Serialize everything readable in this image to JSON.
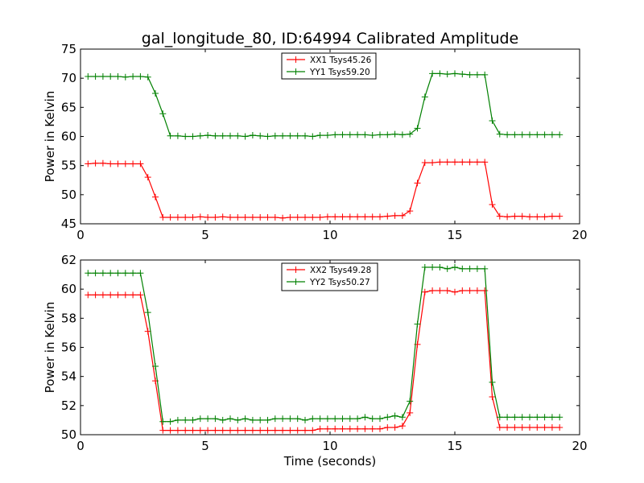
{
  "figure": {
    "title": "gal_longitude_80, ID:64994 Calibrated Amplitude"
  },
  "chart_data": [
    {
      "type": "line",
      "title": "gal_longitude_80, ID:64994 Calibrated Amplitude",
      "xlabel": "",
      "ylabel": "Power in Kelvin",
      "xlim": [
        0,
        20
      ],
      "ylim": [
        45,
        75
      ],
      "xticks": [
        0,
        5,
        10,
        15,
        20
      ],
      "yticks": [
        45,
        50,
        55,
        60,
        65,
        70,
        75
      ],
      "grid": false,
      "legend_position": "top-center",
      "x": [
        0.3,
        0.6,
        0.9,
        1.2,
        1.5,
        1.8,
        2.1,
        2.4,
        2.7,
        3.0,
        3.3,
        3.6,
        3.9,
        4.2,
        4.5,
        4.8,
        5.1,
        5.4,
        5.7,
        6.0,
        6.3,
        6.6,
        6.9,
        7.2,
        7.5,
        7.8,
        8.1,
        8.4,
        8.7,
        9.0,
        9.3,
        9.6,
        9.9,
        10.2,
        10.5,
        10.8,
        11.1,
        11.4,
        11.7,
        12.0,
        12.3,
        12.6,
        12.9,
        13.2,
        13.5,
        13.8,
        14.1,
        14.4,
        14.7,
        15.0,
        15.3,
        15.6,
        15.9,
        16.2,
        16.5,
        16.8,
        17.1,
        17.4,
        17.7,
        18.0,
        18.3,
        18.6,
        18.9,
        19.2
      ],
      "series": [
        {
          "name": "XX1 Tsys45.26",
          "color": "#ff0000",
          "values": [
            55.3,
            55.4,
            55.4,
            55.3,
            55.3,
            55.3,
            55.3,
            55.3,
            53.0,
            49.6,
            46.1,
            46.1,
            46.1,
            46.1,
            46.1,
            46.2,
            46.1,
            46.1,
            46.2,
            46.1,
            46.1,
            46.1,
            46.1,
            46.1,
            46.1,
            46.1,
            46.0,
            46.1,
            46.1,
            46.1,
            46.1,
            46.1,
            46.2,
            46.2,
            46.2,
            46.2,
            46.2,
            46.2,
            46.2,
            46.2,
            46.3,
            46.4,
            46.4,
            47.2,
            52.0,
            55.5,
            55.5,
            55.6,
            55.6,
            55.6,
            55.6,
            55.6,
            55.6,
            55.6,
            48.3,
            46.3,
            46.2,
            46.3,
            46.3,
            46.2,
            46.2,
            46.2,
            46.3,
            46.3
          ]
        },
        {
          "name": "YY1 Tsys59.20",
          "color": "#008000",
          "values": [
            70.3,
            70.3,
            70.3,
            70.3,
            70.3,
            70.2,
            70.3,
            70.3,
            70.2,
            67.4,
            63.9,
            60.1,
            60.1,
            60.0,
            60.0,
            60.1,
            60.2,
            60.1,
            60.1,
            60.1,
            60.1,
            60.0,
            60.2,
            60.1,
            60.0,
            60.1,
            60.1,
            60.1,
            60.1,
            60.1,
            60.0,
            60.2,
            60.2,
            60.3,
            60.3,
            60.3,
            60.3,
            60.3,
            60.2,
            60.3,
            60.3,
            60.4,
            60.3,
            60.4,
            61.4,
            66.8,
            70.8,
            70.8,
            70.7,
            70.8,
            70.7,
            70.6,
            70.6,
            70.6,
            62.7,
            60.4,
            60.3,
            60.3,
            60.3,
            60.3,
            60.3,
            60.3,
            60.3,
            60.3
          ]
        }
      ]
    },
    {
      "type": "line",
      "title": "",
      "xlabel": "Time (seconds)",
      "ylabel": "Power in Kelvin",
      "xlim": [
        0,
        20
      ],
      "ylim": [
        50,
        62
      ],
      "xticks": [
        0,
        5,
        10,
        15,
        20
      ],
      "yticks": [
        50,
        52,
        54,
        56,
        58,
        60,
        62
      ],
      "grid": false,
      "legend_position": "top-center",
      "x": [
        0.3,
        0.6,
        0.9,
        1.2,
        1.5,
        1.8,
        2.1,
        2.4,
        2.7,
        3.0,
        3.3,
        3.6,
        3.9,
        4.2,
        4.5,
        4.8,
        5.1,
        5.4,
        5.7,
        6.0,
        6.3,
        6.6,
        6.9,
        7.2,
        7.5,
        7.8,
        8.1,
        8.4,
        8.7,
        9.0,
        9.3,
        9.6,
        9.9,
        10.2,
        10.5,
        10.8,
        11.1,
        11.4,
        11.7,
        12.0,
        12.3,
        12.6,
        12.9,
        13.2,
        13.5,
        13.8,
        14.1,
        14.4,
        14.7,
        15.0,
        15.3,
        15.6,
        15.9,
        16.2,
        16.5,
        16.8,
        17.1,
        17.4,
        17.7,
        18.0,
        18.3,
        18.6,
        18.9,
        19.2
      ],
      "series": [
        {
          "name": "XX2 Tsys49.28",
          "color": "#ff0000",
          "values": [
            59.6,
            59.6,
            59.6,
            59.6,
            59.6,
            59.6,
            59.6,
            59.6,
            57.1,
            53.7,
            50.3,
            50.3,
            50.3,
            50.3,
            50.3,
            50.3,
            50.3,
            50.3,
            50.3,
            50.3,
            50.3,
            50.3,
            50.3,
            50.3,
            50.3,
            50.3,
            50.3,
            50.3,
            50.3,
            50.3,
            50.3,
            50.4,
            50.4,
            50.4,
            50.4,
            50.4,
            50.4,
            50.4,
            50.4,
            50.4,
            50.5,
            50.5,
            50.6,
            51.5,
            56.2,
            59.8,
            59.9,
            59.9,
            59.9,
            59.8,
            59.9,
            59.9,
            59.9,
            59.9,
            52.6,
            50.5,
            50.5,
            50.5,
            50.5,
            50.5,
            50.5,
            50.5,
            50.5,
            50.5
          ]
        },
        {
          "name": "YY2 Tsys50.27",
          "color": "#008000",
          "values": [
            61.1,
            61.1,
            61.1,
            61.1,
            61.1,
            61.1,
            61.1,
            61.1,
            58.4,
            54.7,
            50.9,
            50.9,
            51.0,
            51.0,
            51.0,
            51.1,
            51.1,
            51.1,
            51.0,
            51.1,
            51.0,
            51.1,
            51.0,
            51.0,
            51.0,
            51.1,
            51.1,
            51.1,
            51.1,
            51.0,
            51.1,
            51.1,
            51.1,
            51.1,
            51.1,
            51.1,
            51.1,
            51.2,
            51.1,
            51.1,
            51.2,
            51.3,
            51.2,
            52.3,
            57.6,
            61.5,
            61.5,
            61.5,
            61.4,
            61.5,
            61.4,
            61.4,
            61.4,
            61.4,
            53.6,
            51.2,
            51.2,
            51.2,
            51.2,
            51.2,
            51.2,
            51.2,
            51.2,
            51.2
          ]
        }
      ]
    }
  ]
}
